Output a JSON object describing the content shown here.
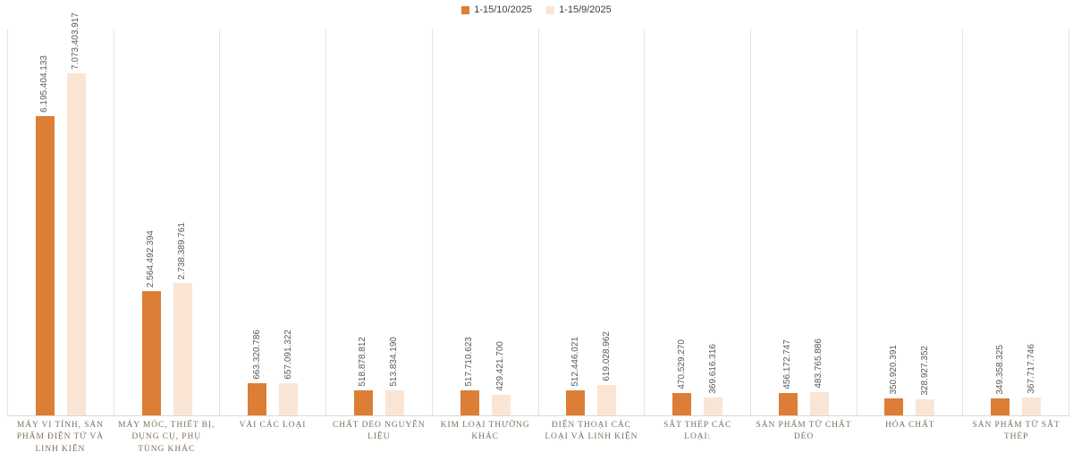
{
  "chart_data": {
    "type": "bar",
    "title": "",
    "legend_position": "top",
    "grid": "vertical category separators",
    "ylim": [
      0,
      8000000000
    ],
    "colors": {
      "gridline": "#E3E3E3",
      "axis_line": "#D9D9D9",
      "value_label": "#595959",
      "category_label": "#7E6E5E",
      "legend_text": "#404040"
    },
    "categories": [
      "MÁY VI TÍNH, SẢN PHẨM ĐIỆN TỬ VÀ LINH KIỆN",
      "MÁY MÓC, THIẾT BỊ, DỤNG CỤ, PHỤ TÙNG KHÁC",
      "VẢI CÁC LOẠI",
      "CHẤT DẺO NGUYÊN LIỆU",
      "KIM LOẠI THƯỜNG KHÁC",
      "ĐIỆN THOẠI CÁC LOẠI VÀ LINH KIỆN",
      "SẮT THÉP CÁC LOẠI:",
      "SẢN PHẨM TỪ CHẤT DẺO",
      "HÓA CHẤT",
      "SẢN PHẨM TỪ SẮT THÉP"
    ],
    "series": [
      {
        "name": "1-15/10/2025",
        "color": "#DC7E35",
        "values": [
          6195404133,
          2564492394,
          663320786,
          518878812,
          517710623,
          512446021,
          470529270,
          456172747,
          350920391,
          349358325
        ],
        "labels": [
          "6.195.404.133",
          "2.564.492.394",
          "663.320.786",
          "518.878.812",
          "517.710.623",
          "512.446.021",
          "470.529.270",
          "456.172.747",
          "350.920.391",
          "349.358.325"
        ]
      },
      {
        "name": "1-15/9/2025",
        "color": "#FAE5D5",
        "values": [
          7073403917,
          2738389761,
          657091322,
          513834190,
          429421700,
          619028962,
          369616316,
          483765886,
          328927352,
          367717746
        ],
        "labels": [
          "7.073.403.917",
          "2.738.389.761",
          "657.091.322",
          "513.834.190",
          "429.421.700",
          "619.028.962",
          "369.616.316",
          "483.765.886",
          "328.927.352",
          "367.717.746"
        ]
      }
    ]
  }
}
